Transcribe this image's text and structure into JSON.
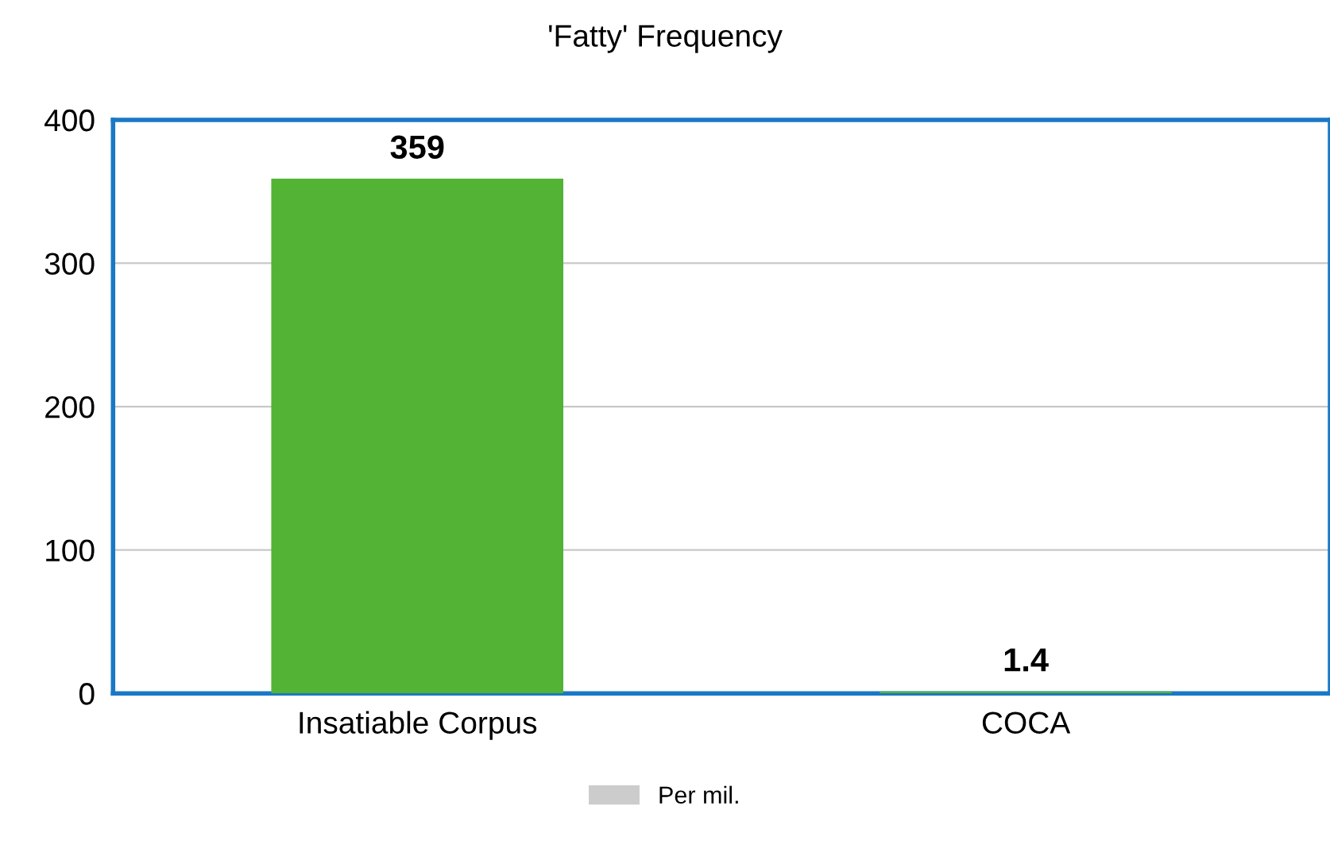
{
  "chart_data": {
    "type": "bar",
    "title": "'Fatty' Frequency",
    "categories": [
      "Insatiable Corpus",
      "COCA"
    ],
    "series": [
      {
        "name": "Per mil.",
        "color": "#cccccc",
        "colors": [
          "#52b334",
          "#52b334"
        ],
        "values": [
          359,
          1.4
        ]
      }
    ],
    "data_labels": true,
    "ylim": [
      0,
      400
    ],
    "yticks": [
      0,
      100,
      200,
      300,
      400
    ],
    "grid": "y",
    "legend": "bottom"
  }
}
